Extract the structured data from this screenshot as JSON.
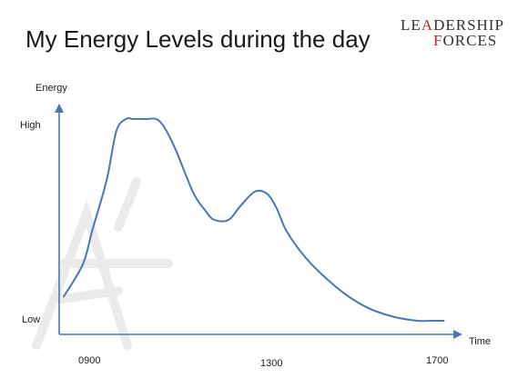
{
  "slide": {
    "title": "My Energy Levels during the day"
  },
  "logo": {
    "line1_pre": "LE",
    "line1_accent": "A",
    "line1_post": "DERSHIP",
    "line2_accent": "F",
    "line2_post": "ORCES"
  },
  "colors": {
    "line": "#4a78b0",
    "axis": "#4a78b0",
    "logo_accent": "#c0282d",
    "watermark": "#d9d9d9"
  },
  "chart_data": {
    "type": "line",
    "title": "",
    "xlabel": "Time",
    "ylabel": "Energy",
    "x_tick_labels": [
      "0900",
      "1300",
      "1700"
    ],
    "y_tick_labels": [
      "Low",
      "High"
    ],
    "xlim": [
      900,
      1700
    ],
    "ylim": [
      0,
      100
    ],
    "grid": false,
    "series": [
      {
        "x": [
          900,
          940,
          960,
          990,
          1010,
          1030,
          1045,
          1070,
          1100,
          1130,
          1170,
          1195,
          1215,
          1245,
          1270,
          1300,
          1325,
          1345,
          1365,
          1400,
          1440,
          1490,
          1540,
          1590,
          1640,
          1670,
          1695
        ],
        "y": [
          12,
          28,
          45,
          70,
          94,
          100,
          100,
          100,
          99,
          87,
          64,
          55,
          50,
          50,
          57,
          64,
          63,
          56,
          45,
          33,
          23,
          13,
          6,
          2,
          0,
          0,
          0
        ]
      }
    ]
  }
}
